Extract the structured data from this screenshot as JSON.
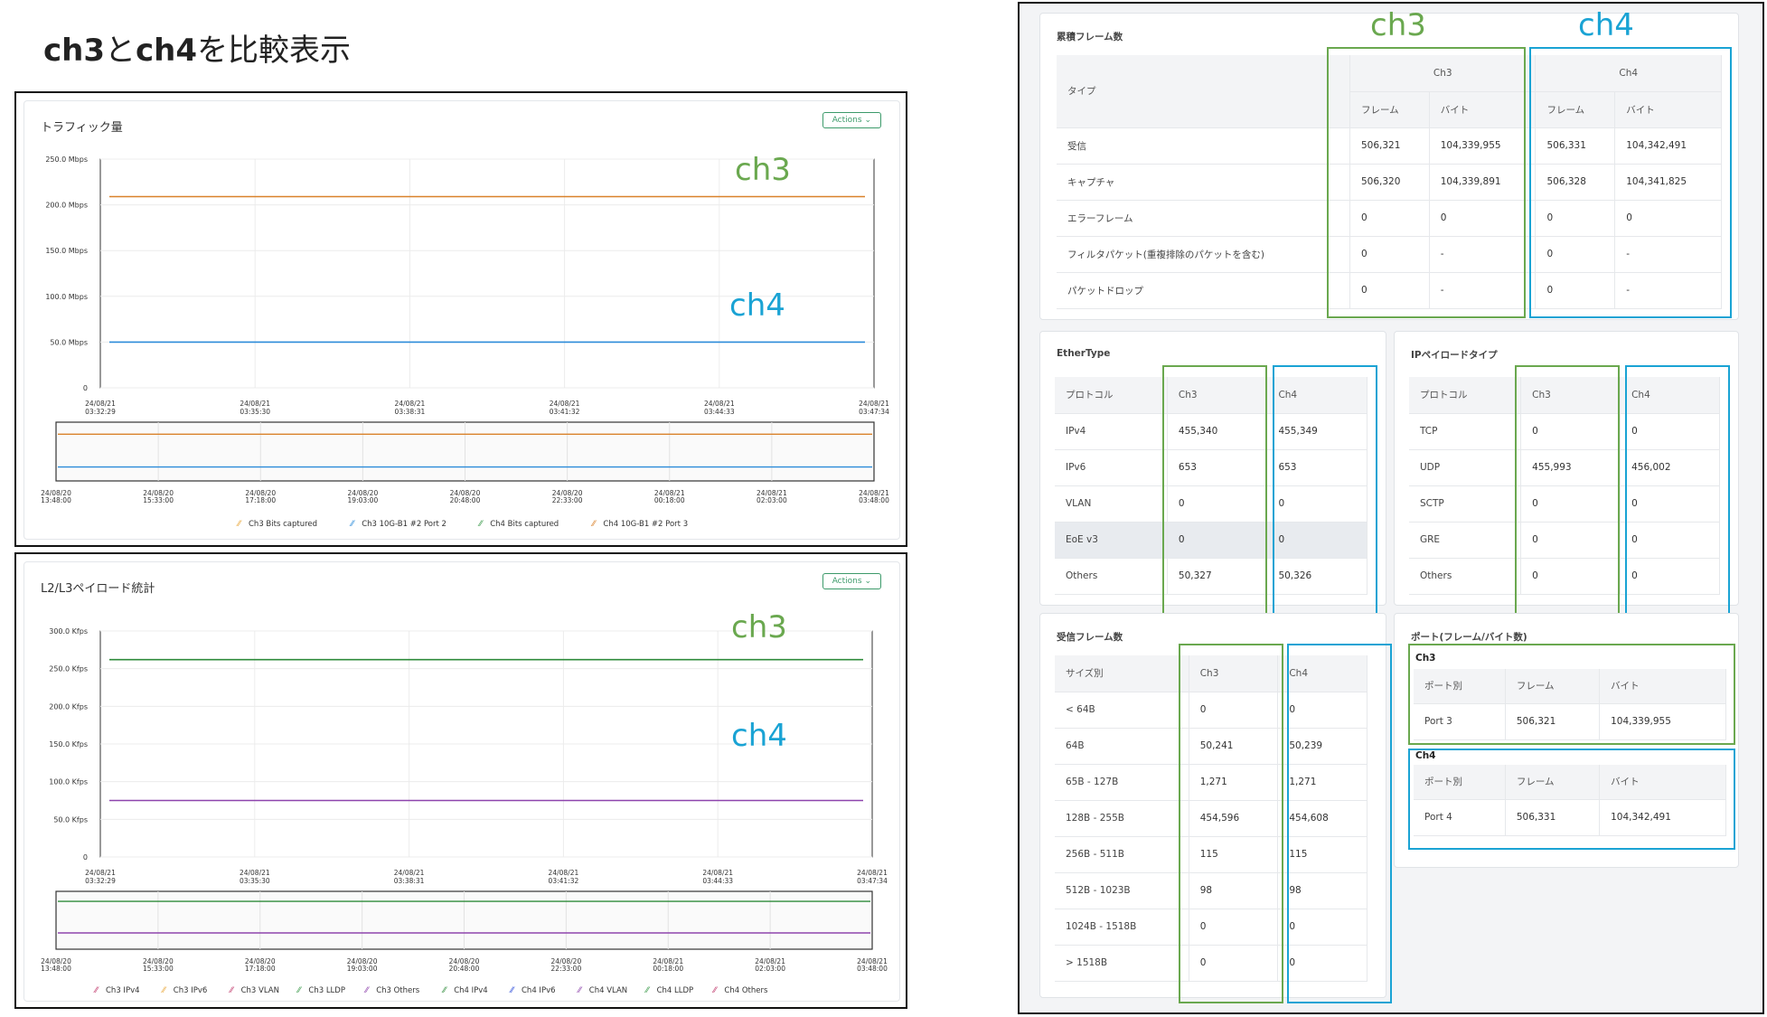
{
  "slide_title": {
    "bold1": "ch3",
    "mid": "と",
    "bold2": "ch4",
    "rest": "を比較表示"
  },
  "traffic_chart": {
    "title": "トラフィック量",
    "actions_label": "Actions",
    "chart_data": {
      "type": "line",
      "y_ticks": [
        "250.0 Mbps",
        "200.0 Mbps",
        "150.0 Mbps",
        "100.0 Mbps",
        "50.0 Mbps",
        "0"
      ],
      "ylim": [
        0,
        250
      ],
      "x_ticks": [
        [
          "24/08/21",
          "03:32:29"
        ],
        [
          "24/08/21",
          "03:35:30"
        ],
        [
          "24/08/21",
          "03:38:31"
        ],
        [
          "24/08/21",
          "03:41:32"
        ],
        [
          "24/08/21",
          "03:44:33"
        ],
        [
          "24/08/21",
          "03:47:34"
        ]
      ],
      "series": [
        {
          "name": "Ch3 Bits captured",
          "color": "#d9822b",
          "values": [
            209,
            209
          ]
        },
        {
          "name": "Ch4 Bits captured",
          "color": "#2b8bd9",
          "values": [
            50,
            50
          ]
        }
      ],
      "nav_x_ticks": [
        [
          "24/08/20",
          "13:48:00"
        ],
        [
          "24/08/20",
          "15:33:00"
        ],
        [
          "24/08/20",
          "17:18:00"
        ],
        [
          "24/08/20",
          "19:03:00"
        ],
        [
          "24/08/20",
          "20:48:00"
        ],
        [
          "24/08/20",
          "22:33:00"
        ],
        [
          "24/08/21",
          "00:18:00"
        ],
        [
          "24/08/21",
          "02:03:00"
        ],
        [
          "24/08/21",
          "03:48:00"
        ]
      ]
    },
    "legend": [
      {
        "label": "Ch3 Bits captured",
        "color": "#e8a73a"
      },
      {
        "label": "Ch3 10G-B1 #2 Port 2",
        "color": "#2b8bd9"
      },
      {
        "label": "Ch4 Bits captured",
        "color": "#3a9a4a"
      },
      {
        "label": "Ch4 10G-B1 #2 Port 3",
        "color": "#d9822b"
      }
    ],
    "overlay": {
      "ch3": "ch3",
      "ch4": "ch4"
    }
  },
  "payload_chart": {
    "title": "L2/L3ペイロード統計",
    "actions_label": "Actions",
    "chart_data": {
      "type": "line",
      "y_ticks": [
        "300.0 Kfps",
        "250.0 Kfps",
        "200.0 Kfps",
        "150.0 Kfps",
        "100.0 Kfps",
        "50.0 Kfps",
        "0"
      ],
      "ylim": [
        0,
        300
      ],
      "x_ticks": [
        [
          "24/08/21",
          "03:32:29"
        ],
        [
          "24/08/21",
          "03:35:30"
        ],
        [
          "24/08/21",
          "03:38:31"
        ],
        [
          "24/08/21",
          "03:41:32"
        ],
        [
          "24/08/21",
          "03:44:33"
        ],
        [
          "24/08/21",
          "03:47:34"
        ]
      ],
      "series": [
        {
          "name": "Ch3 IPv4",
          "color": "#2e8b3a",
          "values": [
            262,
            262
          ]
        },
        {
          "name": "Ch4 IPv4",
          "color": "#8e44ad",
          "values": [
            75,
            75
          ]
        }
      ],
      "nav_x_ticks": [
        [
          "24/08/20",
          "13:48:00"
        ],
        [
          "24/08/20",
          "15:33:00"
        ],
        [
          "24/08/20",
          "17:18:00"
        ],
        [
          "24/08/20",
          "19:03:00"
        ],
        [
          "24/08/20",
          "20:48:00"
        ],
        [
          "24/08/20",
          "22:33:00"
        ],
        [
          "24/08/21",
          "00:18:00"
        ],
        [
          "24/08/21",
          "02:03:00"
        ],
        [
          "24/08/21",
          "03:48:00"
        ]
      ]
    },
    "legend": [
      {
        "label": "Ch3 IPv4",
        "color": "#c0396b"
      },
      {
        "label": "Ch3 IPv6",
        "color": "#e8a73a"
      },
      {
        "label": "Ch3 VLAN",
        "color": "#c0396b"
      },
      {
        "label": "Ch3 LLDP",
        "color": "#3a9a4a"
      },
      {
        "label": "Ch3 Others",
        "color": "#8e44ad"
      },
      {
        "label": "Ch4 IPv4",
        "color": "#2e8b3a"
      },
      {
        "label": "Ch4 IPv6",
        "color": "#2b4bd9"
      },
      {
        "label": "Ch4 VLAN",
        "color": "#8e44ad"
      },
      {
        "label": "Ch4 LLDP",
        "color": "#3a9a4a"
      },
      {
        "label": "Ch4 Others",
        "color": "#c0396b"
      }
    ],
    "overlay": {
      "ch3": "ch3",
      "ch4": "ch4"
    }
  },
  "cumulative": {
    "title": "累積フレーム数",
    "overlay": {
      "ch3": "ch3",
      "ch4": "ch4"
    },
    "head_type": "タイプ",
    "head_ch3": "Ch3",
    "head_ch4": "Ch4",
    "head_frame": "フレーム",
    "head_byte": "バイト",
    "rows": [
      {
        "label": "受信",
        "c3f": "506,321",
        "c3b": "104,339,955",
        "c4f": "506,331",
        "c4b": "104,342,491"
      },
      {
        "label": "キャプチャ",
        "c3f": "506,320",
        "c3b": "104,339,891",
        "c4f": "506,328",
        "c4b": "104,341,825"
      },
      {
        "label": "エラーフレーム",
        "c3f": "0",
        "c3b": "0",
        "c4f": "0",
        "c4b": "0"
      },
      {
        "label": "フィルタパケット(重複排除のパケットを含む)",
        "c3f": "0",
        "c3b": "-",
        "c4f": "0",
        "c4b": "-"
      },
      {
        "label": "パケットドロップ",
        "c3f": "0",
        "c3b": "-",
        "c4f": "0",
        "c4b": "-"
      }
    ]
  },
  "ethertype": {
    "title": "EtherType",
    "head_proto": "プロトコル",
    "head_ch3": "Ch3",
    "head_ch4": "Ch4",
    "rows": [
      {
        "label": "IPv4",
        "c3": "455,340",
        "c4": "455,349"
      },
      {
        "label": "IPv6",
        "c3": "653",
        "c4": "653"
      },
      {
        "label": "VLAN",
        "c3": "0",
        "c4": "0"
      },
      {
        "label": "EoE v3",
        "c3": "0",
        "c4": "0"
      },
      {
        "label": "Others",
        "c3": "50,327",
        "c4": "50,326"
      }
    ]
  },
  "ip_payload": {
    "title": "IPペイロードタイプ",
    "head_proto": "プロトコル",
    "head_ch3": "Ch3",
    "head_ch4": "Ch4",
    "rows": [
      {
        "label": "TCP",
        "c3": "0",
        "c4": "0"
      },
      {
        "label": "UDP",
        "c3": "455,993",
        "c4": "456,002"
      },
      {
        "label": "SCTP",
        "c3": "0",
        "c4": "0"
      },
      {
        "label": "GRE",
        "c3": "0",
        "c4": "0"
      },
      {
        "label": "Others",
        "c3": "0",
        "c4": "0"
      }
    ]
  },
  "rx_frames": {
    "title": "受信フレーム数",
    "head_size": "サイズ別",
    "head_ch3": "Ch3",
    "head_ch4": "Ch4",
    "rows": [
      {
        "label": "< 64B",
        "c3": "0",
        "c4": "0"
      },
      {
        "label": "64B",
        "c3": "50,241",
        "c4": "50,239"
      },
      {
        "label": "65B - 127B",
        "c3": "1,271",
        "c4": "1,271"
      },
      {
        "label": "128B - 255B",
        "c3": "454,596",
        "c4": "454,608"
      },
      {
        "label": "256B - 511B",
        "c3": "115",
        "c4": "115"
      },
      {
        "label": "512B - 1023B",
        "c3": "98",
        "c4": "98"
      },
      {
        "label": "1024B - 1518B",
        "c3": "0",
        "c4": "0"
      },
      {
        "label": "> 1518B",
        "c3": "0",
        "c4": "0"
      }
    ]
  },
  "ports": {
    "title": "ポート(フレーム/バイト数)",
    "ch3_label": "Ch3",
    "ch4_label": "Ch4",
    "head_port": "ポート別",
    "head_frame": "フレーム",
    "head_byte": "バイト",
    "ch3_row": {
      "port": "Port 3",
      "frame": "506,321",
      "byte": "104,339,955"
    },
    "ch4_row": {
      "port": "Port 4",
      "frame": "506,331",
      "byte": "104,342,491"
    }
  }
}
